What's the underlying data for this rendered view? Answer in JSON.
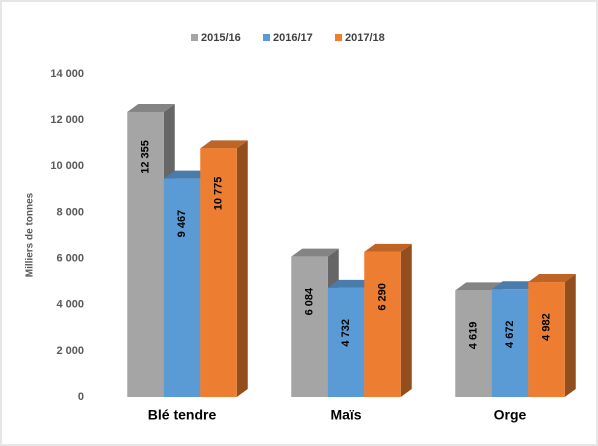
{
  "chart_data": {
    "type": "bar3d",
    "ylabel": "Milliers de tonnes",
    "categories": [
      "Blé tendre",
      "Maïs",
      "Orge"
    ],
    "series": [
      {
        "name": "2015/16",
        "color": "#a5a5a5",
        "values": [
          12355,
          6084,
          4619
        ],
        "value_labels": [
          "12 355",
          "6 084",
          "4 619"
        ]
      },
      {
        "name": "2016/17",
        "color": "#5b9bd5",
        "values": [
          9467,
          4732,
          4672
        ],
        "value_labels": [
          "9 467",
          "4 732",
          "4 672"
        ]
      },
      {
        "name": "2017/18",
        "color": "#ed7d31",
        "values": [
          10775,
          6290,
          4982
        ],
        "value_labels": [
          "10 775",
          "6 290",
          "4 982"
        ]
      }
    ],
    "ylim": [
      0,
      14000
    ],
    "yticks": [
      0,
      {
        "value": 2000,
        "label": "2 000"
      },
      {
        "value": 4000,
        "label": "4 000"
      },
      {
        "value": 6000,
        "label": "6 000"
      },
      {
        "value": 8000,
        "label": "8 000"
      },
      {
        "value": 10000,
        "label": "10 000"
      },
      {
        "value": 12000,
        "label": "12 000"
      },
      {
        "value": 14000,
        "label": "14 000"
      }
    ],
    "grid": false,
    "legend": "top"
  }
}
